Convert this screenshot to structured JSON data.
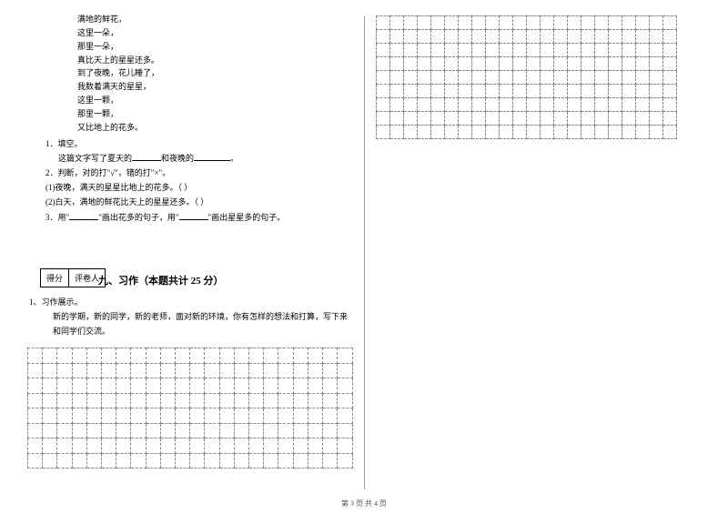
{
  "poem": {
    "lines": [
      "满地的鲜花，",
      "这里一朵，",
      "那里一朵，",
      "真比天上的星星还多。",
      "到了夜晚，花儿睡了，",
      "我数着满天的星星，",
      "这里一颗，",
      "那里一颗，",
      "又比地上的花多。"
    ]
  },
  "questions": {
    "q1_label": "1．填空。",
    "q1_text_a": "这篇文字写了夏天的",
    "q1_text_b": "和夜晚的",
    "q1_text_c": "。",
    "q2_label": "2．判断，对的打\"√\"，错的打\"×\"。",
    "q2_1": "(1)夜晚，满天的星星比地上的花多。（     ）",
    "q2_2": "(2)白天，满地的鲜花比天上的星星还多。（     ）",
    "q3_a": "3．用\"",
    "q3_b": "\"画出花多的句子，用\"",
    "q3_c": "\"画出星星多的句子。"
  },
  "score": {
    "c1": "得分",
    "c2": "评卷人"
  },
  "section": {
    "title": "九、习作（本题共计 25 分）"
  },
  "essay": {
    "label": "1、习作展示。",
    "prompt": "新的学期，新的同学，新的老师，面对新的环境，你有怎样的想法和打​算，写下来和同学们交流。"
  },
  "grid_left": {
    "rows": 8,
    "cols": 22
  },
  "grid_right": {
    "rows": 9,
    "cols": 22
  },
  "footer": "第 3 页 共 4 页",
  "blank_widths": {
    "short": "32px",
    "med": "40px"
  }
}
